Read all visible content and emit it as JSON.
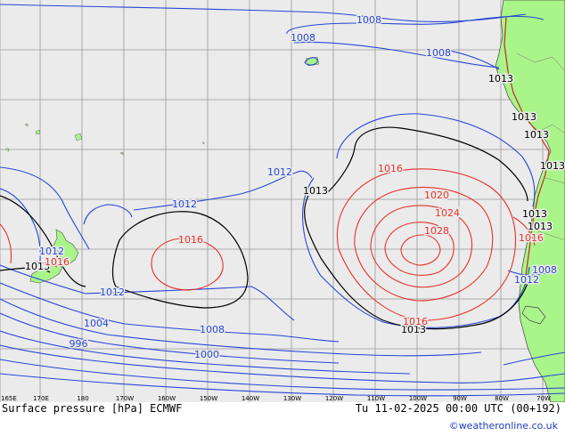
{
  "map": {
    "title": "Surface pressure [hPa] ECMWF",
    "datetime": "Tu 11-02-2025 00:00 UTC (00+192)",
    "credit": "©weatheronline.co.uk",
    "colors": {
      "ocean": "#ebebeb",
      "land": "#aaf58a",
      "grid": "#9a9a9a",
      "low_isobar": "#2846d6",
      "reference_isobar": "#000000",
      "high_isobar": "#e8302a"
    },
    "lon_labels": [
      "165E",
      "170E",
      "180",
      "170W",
      "160W",
      "150W",
      "140W",
      "130W",
      "120W",
      "110W",
      "100W",
      "90W",
      "80W",
      "70W"
    ],
    "isobar_labels": [
      {
        "text": "1008",
        "kind": "low"
      },
      {
        "text": "1008",
        "kind": "low"
      },
      {
        "text": "1008",
        "kind": "low"
      },
      {
        "text": "1012",
        "kind": "low"
      },
      {
        "text": "1012",
        "kind": "low"
      },
      {
        "text": "1012",
        "kind": "low"
      },
      {
        "text": "1012",
        "kind": "low"
      },
      {
        "text": "1004",
        "kind": "low"
      },
      {
        "text": "1008",
        "kind": "low"
      },
      {
        "text": "996",
        "kind": "low"
      },
      {
        "text": "1000",
        "kind": "low"
      },
      {
        "text": "1012",
        "kind": "low"
      },
      {
        "text": "1008",
        "kind": "low"
      },
      {
        "text": "1013",
        "kind": "ref"
      },
      {
        "text": "1013",
        "kind": "ref"
      },
      {
        "text": "1013",
        "kind": "ref"
      },
      {
        "text": "1013",
        "kind": "ref"
      },
      {
        "text": "1013",
        "kind": "ref"
      },
      {
        "text": "1013",
        "kind": "ref"
      },
      {
        "text": "1013",
        "kind": "ref"
      },
      {
        "text": "1013",
        "kind": "ref"
      },
      {
        "text": "1013",
        "kind": "ref"
      },
      {
        "text": "1016",
        "kind": "high"
      },
      {
        "text": "1016",
        "kind": "high"
      },
      {
        "text": "1016",
        "kind": "high"
      },
      {
        "text": "1016",
        "kind": "high"
      },
      {
        "text": "1020",
        "kind": "high"
      },
      {
        "text": "1024",
        "kind": "high"
      },
      {
        "text": "1028",
        "kind": "high"
      },
      {
        "text": "1016",
        "kind": "high"
      }
    ]
  }
}
